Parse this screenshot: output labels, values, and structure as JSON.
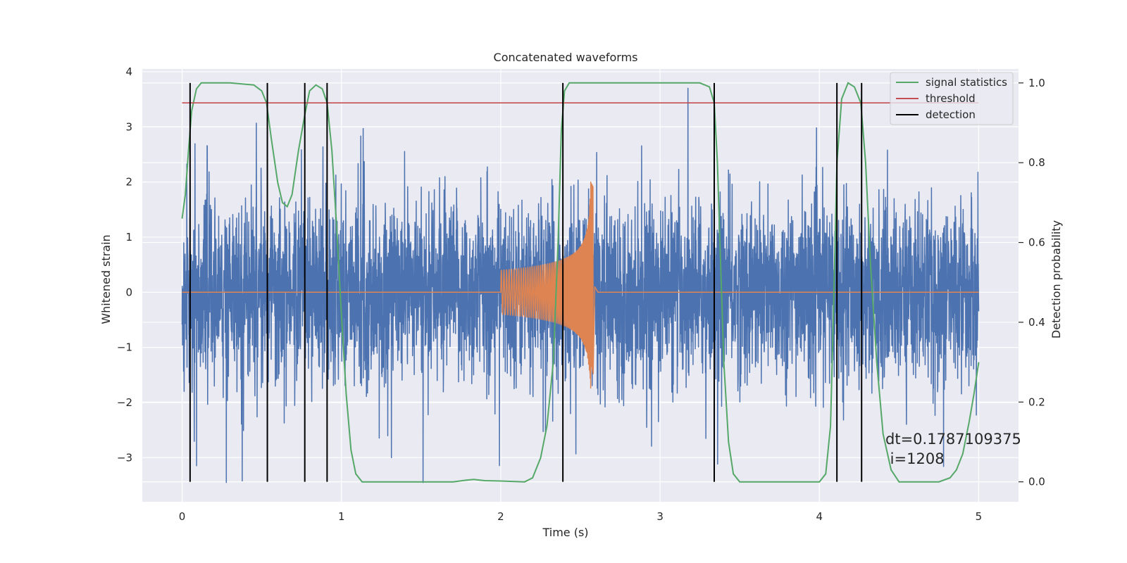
{
  "chart_data": {
    "type": "line",
    "title": "Concatenated waveforms",
    "xlabel": "Time (s)",
    "ylabel": "Whitened strain",
    "y2label": "Detection probability",
    "xlim": [
      -0.25,
      5.25
    ],
    "ylim": [
      -3.8,
      4.05
    ],
    "y2lim": [
      -0.05,
      1.035
    ],
    "x_ticks": [
      0,
      1,
      2,
      3,
      4,
      5
    ],
    "x_tick_labels": [
      "0",
      "1",
      "2",
      "3",
      "4",
      "5"
    ],
    "y_ticks": [
      -3,
      -2,
      -1,
      0,
      1,
      2,
      3,
      4
    ],
    "y_tick_labels": [
      "−3",
      "−2",
      "−1",
      "0",
      "1",
      "2",
      "3",
      "4"
    ],
    "y2_ticks": [
      0.0,
      0.2,
      0.4,
      0.6,
      0.8,
      1.0
    ],
    "y2_tick_labels": [
      "0.0",
      "0.2",
      "0.4",
      "0.6",
      "0.8",
      "1.0"
    ],
    "grid": true,
    "legend_placement": "top-right",
    "noise": {
      "x_range": [
        0,
        5
      ],
      "envelope": {
        "typical_abs": 1.1,
        "max_abs": 3.7,
        "min": -3.45
      },
      "color": "#4c72b0"
    },
    "injection": {
      "x_range": [
        2.0,
        2.58
      ],
      "amplitude_start": 0.4,
      "amplitude_peak": 2.0,
      "merger_x": 2.57,
      "color": "#dd8452"
    },
    "series": [
      {
        "name": "signal statistics",
        "axis": "right",
        "color": "#55a868",
        "points": [
          [
            0.0,
            0.66
          ],
          [
            0.02,
            0.72
          ],
          [
            0.04,
            0.83
          ],
          [
            0.06,
            0.93
          ],
          [
            0.09,
            0.985
          ],
          [
            0.12,
            1.0
          ],
          [
            0.3,
            1.0
          ],
          [
            0.45,
            0.995
          ],
          [
            0.5,
            0.98
          ],
          [
            0.53,
            0.95
          ],
          [
            0.56,
            0.86
          ],
          [
            0.6,
            0.75
          ],
          [
            0.63,
            0.7
          ],
          [
            0.66,
            0.69
          ],
          [
            0.69,
            0.72
          ],
          [
            0.73,
            0.83
          ],
          [
            0.77,
            0.92
          ],
          [
            0.8,
            0.98
          ],
          [
            0.84,
            0.995
          ],
          [
            0.88,
            0.985
          ],
          [
            0.91,
            0.95
          ],
          [
            0.94,
            0.83
          ],
          [
            0.97,
            0.64
          ],
          [
            1.0,
            0.42
          ],
          [
            1.03,
            0.22
          ],
          [
            1.06,
            0.08
          ],
          [
            1.09,
            0.02
          ],
          [
            1.13,
            0.0
          ],
          [
            1.7,
            0.0
          ],
          [
            1.78,
            0.004
          ],
          [
            1.83,
            0.006
          ],
          [
            1.9,
            0.003
          ],
          [
            2.0,
            0.002
          ],
          [
            2.15,
            0.0
          ],
          [
            2.2,
            0.01
          ],
          [
            2.25,
            0.06
          ],
          [
            2.29,
            0.14
          ],
          [
            2.33,
            0.3
          ],
          [
            2.36,
            0.6
          ],
          [
            2.38,
            0.88
          ],
          [
            2.4,
            0.98
          ],
          [
            2.43,
            1.0
          ],
          [
            3.25,
            1.0
          ],
          [
            3.31,
            0.99
          ],
          [
            3.34,
            0.95
          ],
          [
            3.36,
            0.8
          ],
          [
            3.38,
            0.55
          ],
          [
            3.4,
            0.3
          ],
          [
            3.43,
            0.1
          ],
          [
            3.46,
            0.02
          ],
          [
            3.5,
            0.0
          ],
          [
            4.0,
            0.0
          ],
          [
            4.04,
            0.02
          ],
          [
            4.07,
            0.14
          ],
          [
            4.09,
            0.45
          ],
          [
            4.11,
            0.8
          ],
          [
            4.14,
            0.96
          ],
          [
            4.18,
            1.0
          ],
          [
            4.22,
            0.99
          ],
          [
            4.26,
            0.95
          ],
          [
            4.29,
            0.8
          ],
          [
            4.32,
            0.55
          ],
          [
            4.36,
            0.3
          ],
          [
            4.4,
            0.12
          ],
          [
            4.45,
            0.03
          ],
          [
            4.5,
            0.0
          ],
          [
            4.75,
            0.0
          ],
          [
            4.82,
            0.01
          ],
          [
            4.86,
            0.03
          ],
          [
            4.9,
            0.07
          ],
          [
            4.94,
            0.15
          ],
          [
            4.97,
            0.22
          ],
          [
            5.0,
            0.3
          ]
        ]
      },
      {
        "name": "threshold",
        "axis": "right",
        "color": "#c44e52",
        "points": [
          [
            0.0,
            0.95
          ],
          [
            5.0,
            0.95
          ]
        ]
      },
      {
        "name": "detection",
        "axis": "right",
        "color": "#000000",
        "vlines_x": [
          0.05,
          0.535,
          0.77,
          0.91,
          2.39,
          3.34,
          4.11,
          4.265
        ],
        "vline_range": [
          0.0,
          1.0
        ]
      }
    ],
    "annotations": [
      {
        "text": "dt=0.1787109375",
        "x": 4.5,
        "y": 0.1
      },
      {
        "text": " i=1208",
        "x": 4.5,
        "y": 0.055
      }
    ]
  }
}
